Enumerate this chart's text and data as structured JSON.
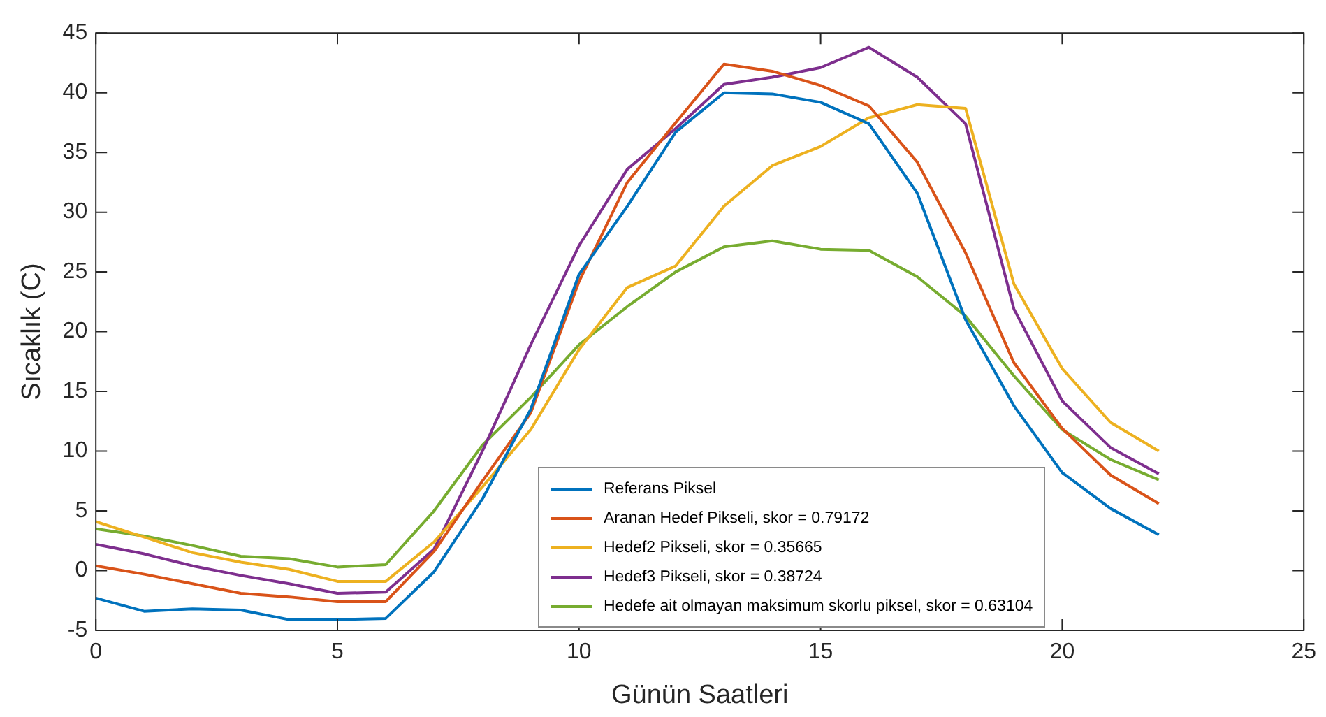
{
  "chart_data": {
    "type": "line",
    "xlabel": "Günün Saatleri",
    "ylabel": "Sıcaklık (C)",
    "x": [
      0,
      1,
      2,
      3,
      4,
      5,
      6,
      7,
      8,
      9,
      10,
      11,
      12,
      13,
      14,
      15,
      16,
      17,
      18,
      19,
      20,
      21,
      22
    ],
    "xlim": [
      0,
      25
    ],
    "xticks": [
      0,
      5,
      10,
      15,
      20,
      25
    ],
    "ylim": [
      -5,
      45
    ],
    "yticks": [
      -5,
      0,
      5,
      10,
      15,
      20,
      25,
      30,
      35,
      40,
      45
    ],
    "grid": false,
    "legend": "bottom",
    "marker": "none",
    "line_style": "solid",
    "series": [
      {
        "name": "Referans Piksel",
        "color": "#0072bd",
        "values": [
          -2.3,
          -3.4,
          -3.2,
          -3.3,
          -4.1,
          -4.1,
          -4.0,
          -0.1,
          6,
          13.5,
          24.8,
          30.5,
          36.7,
          40,
          39.9,
          39.2,
          37.4,
          31.6,
          21,
          13.8,
          8.2,
          5.2,
          3
        ]
      },
      {
        "name": "Aranan Hedef Pikseli, skor = 0.79172",
        "color": "#d95319",
        "values": [
          0.4,
          -0.3,
          -1.1,
          -1.9,
          -2.2,
          -2.6,
          -2.6,
          1.6,
          7.5,
          13.2,
          24.2,
          32.5,
          37.5,
          42.4,
          41.8,
          40.6,
          38.9,
          34.2,
          26.6,
          17.4,
          11.9,
          8.0,
          5.6
        ]
      },
      {
        "name": "Hedef2 Pikseli, skor = 0.35665",
        "color": "#edb120",
        "values": [
          4.1,
          2.8,
          1.5,
          0.7,
          0.1,
          -0.9,
          -0.9,
          2.4,
          7,
          11.8,
          18.5,
          23.7,
          25.5,
          30.5,
          33.9,
          35.5,
          37.9,
          39.0,
          38.7,
          24,
          16.9,
          12.4,
          10
        ]
      },
      {
        "name": "Hedef3 Pikseli, skor = 0.38724",
        "color": "#7e2f8e",
        "values": [
          2.2,
          1.4,
          0.4,
          -0.4,
          -1.1,
          -1.9,
          -1.8,
          1.8,
          10,
          18.9,
          27.2,
          33.6,
          37,
          40.7,
          41.3,
          42.1,
          43.8,
          41.3,
          37.4,
          21.9,
          14.2,
          10.3,
          8.1
        ]
      },
      {
        "name": "Hedefe ait olmayan maksimum skorlu piksel, skor = 0.63104",
        "color": "#77ac30",
        "values": [
          3.5,
          2.9,
          2.1,
          1.2,
          1.0,
          0.3,
          0.5,
          5,
          10.5,
          14.5,
          18.9,
          22.1,
          25,
          27.1,
          27.6,
          26.9,
          26.8,
          24.6,
          21.3,
          16.3,
          11.8,
          9.3,
          7.6
        ]
      }
    ]
  }
}
